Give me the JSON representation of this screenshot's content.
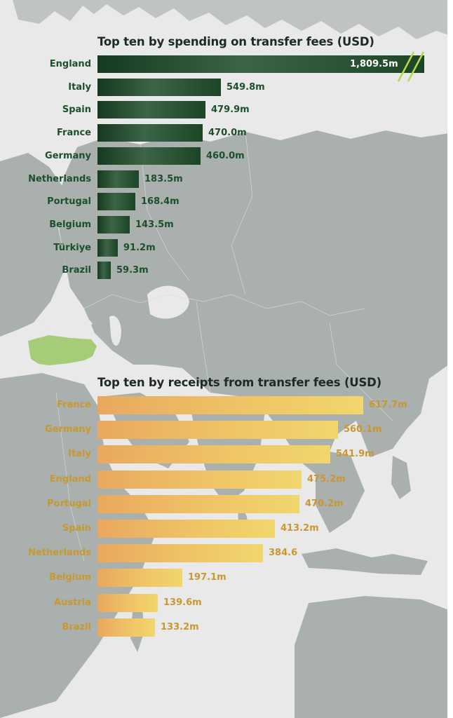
{
  "chart_data": [
    {
      "type": "bar",
      "orientation": "horizontal",
      "title": "Top ten by spending on transfer fees (USD)",
      "categories": [
        "England",
        "Italy",
        "Spain",
        "France",
        "Germany",
        "Netherlands",
        "Portugal",
        "Belgium",
        "Türkiye",
        "Brazil"
      ],
      "values": [
        1809.5,
        549.8,
        479.9,
        470.0,
        460.0,
        183.5,
        168.4,
        143.5,
        91.2,
        59.3
      ],
      "value_labels": [
        "1,809.5m",
        "549.8m",
        "479.9m",
        "470.0m",
        "460.0m",
        "183.5m",
        "168.4m",
        "143.5m",
        "91.2m",
        "59.3m"
      ],
      "unit": "USD millions",
      "axis_break": "England bar truncated (axis break)",
      "color": "#1d4f2c"
    },
    {
      "type": "bar",
      "orientation": "horizontal",
      "title": "Top ten by receipts from transfer fees (USD)",
      "categories": [
        "France",
        "Germany",
        "Italy",
        "England",
        "Portugal",
        "Spain",
        "Netherlands",
        "Belgium",
        "Austria",
        "Brazil"
      ],
      "values": [
        617.7,
        560.1,
        541.9,
        475.2,
        470.2,
        413.2,
        384.6,
        197.1,
        139.6,
        133.2
      ],
      "value_labels": [
        "617.7m",
        "560.1m",
        "541.9m",
        "475.2m",
        "470.2m",
        "413.2m",
        "384.6",
        "197.1m",
        "139.6m",
        "133.2m"
      ],
      "unit": "USD millions",
      "color": "#c9982e"
    }
  ],
  "colors": {
    "background": "#e9e9e9",
    "map_land": "#a9b0ae",
    "highlight_land": "#a6cc77",
    "spending_bar": "#1d4f2c",
    "receipts_bar": "#efc466"
  }
}
